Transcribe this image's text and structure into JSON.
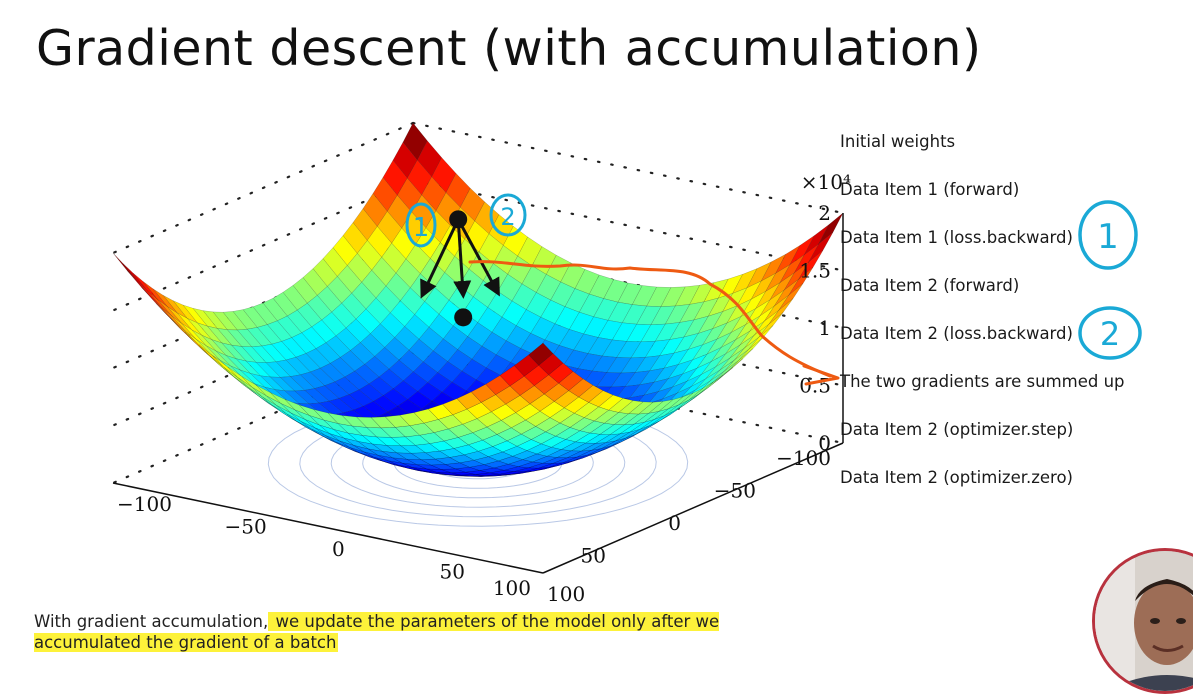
{
  "slide": {
    "title": "Gradient descent (with accumulation)"
  },
  "plot": {
    "exponent_label": "×10⁴",
    "z_ticks": [
      "2",
      "1.5",
      "1",
      "0.5",
      "0"
    ],
    "x_ticks": [
      "100",
      "50",
      "0",
      "−50",
      "−100"
    ],
    "y_ticks": [
      "100",
      "50",
      "0",
      "−50",
      "−100"
    ]
  },
  "annotations": {
    "left_mark": "1",
    "right_mark": "2",
    "step_mark_1": "1",
    "step_mark_2": "2",
    "pen_color": "#1aa9d6",
    "arrow_color": "#ee5a12"
  },
  "steps": [
    "Initial weights",
    "Data Item 1 (forward)",
    "Data Item 1 (loss.backward)",
    "Data Item 2 (forward)",
    "Data Item 2 (loss.backward)",
    "The two gradients are summed up",
    "Data Item 2 (optimizer.step)",
    "Data Item 2 (optimizer.zero)"
  ],
  "caption": {
    "part1": "With gradient accumulation,",
    "part2": " we update the parameters of the model only after we accumulated the gradient of a batch"
  },
  "webcam": {
    "icon": "person-icon"
  }
}
